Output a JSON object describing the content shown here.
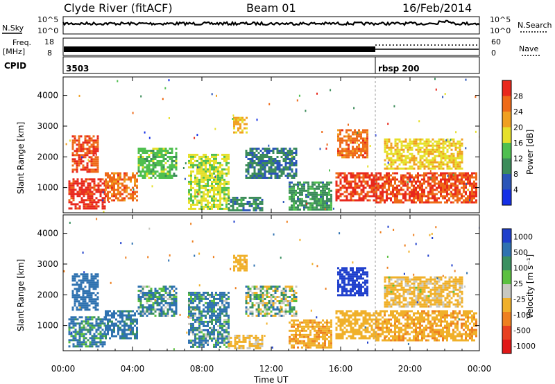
{
  "header": {
    "station": "Clyde River (fitACF)",
    "beam": "Beam 01",
    "date": "16/Feb/2014"
  },
  "noise_panel": {
    "left_label": "N.Sky",
    "right_label": "N.Search",
    "left_ticks": [
      "10^5",
      "10^0"
    ],
    "right_ticks": [
      "10^5",
      "10^0"
    ]
  },
  "freq_panel": {
    "left_label_1": "Freq.",
    "left_label_2": "[MHz]",
    "right_label": "Nave",
    "left_ticks": [
      "18",
      "8"
    ],
    "right_ticks": [
      "60",
      "0"
    ]
  },
  "cpid_panel": {
    "label": "CPID",
    "segments": [
      {
        "start_hour": 0,
        "label": "3503"
      },
      {
        "start_hour": 18,
        "label": "rbsp 200"
      }
    ]
  },
  "x_axis": {
    "label": "Time UT",
    "ticks": [
      "00:00",
      "04:00",
      "08:00",
      "12:00",
      "16:00",
      "20:00",
      "00:00"
    ],
    "range_hours": [
      0,
      24
    ]
  },
  "power_panel": {
    "ylabel": "Slant Range [km]",
    "yticks": [
      "1000",
      "2000",
      "3000",
      "4000"
    ],
    "colorbar_label": "Power [dB]",
    "colorbar_ticks": [
      "4",
      "8",
      "12",
      "16",
      "20",
      "24",
      "28"
    ],
    "colors": [
      "#1530e6",
      "#2b55b8",
      "#3c8c5a",
      "#4fbf4f",
      "#e6e02a",
      "#f0a020",
      "#ee6a18",
      "#e8281c"
    ]
  },
  "velocity_panel": {
    "ylabel": "Slant Range [km]",
    "yticks": [
      "1000",
      "2000",
      "3000",
      "4000"
    ],
    "colorbar_label": "Velocity [m s⁻¹]",
    "colorbar_ticks": [
      "1000",
      "500",
      "100",
      "25",
      "-25",
      "-100",
      "-500",
      "-1000"
    ],
    "colors": [
      "#1f3fcc",
      "#2f72b0",
      "#3a9060",
      "#5cc040",
      "#c8c8c0",
      "#f0b02a",
      "#ee8020",
      "#e84020",
      "#e01818"
    ]
  },
  "chart_data": [
    {
      "type": "heatmap",
      "title": "Power [dB]",
      "xlabel": "Time UT",
      "ylabel": "Slant Range [km]",
      "xlim": [
        0,
        24
      ],
      "ylim": [
        180,
        4600
      ],
      "value_range": [
        0,
        30
      ],
      "regions": [
        {
          "t0": 0.3,
          "t1": 2.4,
          "r0": 350,
          "r1": 1300,
          "value": 28
        },
        {
          "t0": 0.5,
          "t1": 2.0,
          "r0": 1500,
          "r1": 2700,
          "value": 26
        },
        {
          "t0": 2.4,
          "t1": 4.3,
          "r0": 600,
          "r1": 1500,
          "value": 24
        },
        {
          "t0": 4.3,
          "t1": 6.5,
          "r0": 1300,
          "r1": 2300,
          "value": 13
        },
        {
          "t0": 7.2,
          "t1": 9.5,
          "r0": 300,
          "r1": 2100,
          "value": 16
        },
        {
          "t0": 9.5,
          "t1": 11.5,
          "r0": 250,
          "r1": 700,
          "value": 9
        },
        {
          "t0": 9.8,
          "t1": 10.6,
          "r0": 2800,
          "r1": 3300,
          "value": 20
        },
        {
          "t0": 10.5,
          "t1": 13.5,
          "r0": 1300,
          "r1": 2300,
          "value": 8
        },
        {
          "t0": 13.0,
          "t1": 15.5,
          "r0": 300,
          "r1": 1200,
          "value": 10
        },
        {
          "t0": 15.7,
          "t1": 18.0,
          "r0": 600,
          "r1": 1500,
          "value": 27
        },
        {
          "t0": 15.8,
          "t1": 17.5,
          "r0": 2000,
          "r1": 2900,
          "value": 24
        },
        {
          "t0": 18.0,
          "t1": 23.8,
          "r0": 500,
          "r1": 1500,
          "value": 26
        },
        {
          "t0": 18.5,
          "t1": 23.0,
          "r0": 1600,
          "r1": 2600,
          "value": 18
        }
      ]
    },
    {
      "type": "heatmap",
      "title": "Velocity [m s⁻¹]",
      "xlabel": "Time UT",
      "ylabel": "Slant Range [km]",
      "xlim": [
        0,
        24
      ],
      "ylim": [
        180,
        4600
      ],
      "value_range": [
        -1000,
        1000
      ],
      "regions": [
        {
          "t0": 0.3,
          "t1": 2.4,
          "r0": 350,
          "r1": 1300,
          "value": 150
        },
        {
          "t0": 0.5,
          "t1": 2.0,
          "r0": 1500,
          "r1": 2700,
          "value": 300
        },
        {
          "t0": 2.4,
          "t1": 4.3,
          "r0": 600,
          "r1": 1500,
          "value": 200
        },
        {
          "t0": 4.3,
          "t1": 6.5,
          "r0": 1300,
          "r1": 2300,
          "value": 100
        },
        {
          "t0": 7.2,
          "t1": 9.5,
          "r0": 300,
          "r1": 2100,
          "value": 120
        },
        {
          "t0": 9.5,
          "t1": 11.5,
          "r0": 250,
          "r1": 700,
          "value": -200
        },
        {
          "t0": 9.8,
          "t1": 10.6,
          "r0": 2800,
          "r1": 3300,
          "value": -300
        },
        {
          "t0": 10.5,
          "t1": 13.5,
          "r0": 1300,
          "r1": 2300,
          "value": 0
        },
        {
          "t0": 13.0,
          "t1": 15.5,
          "r0": 300,
          "r1": 1200,
          "value": -400
        },
        {
          "t0": 15.7,
          "t1": 18.0,
          "r0": 600,
          "r1": 1500,
          "value": -300
        },
        {
          "t0": 15.8,
          "t1": 17.5,
          "r0": 2000,
          "r1": 2900,
          "value": 800
        },
        {
          "t0": 18.0,
          "t1": 23.8,
          "r0": 500,
          "r1": 1500,
          "value": -400
        },
        {
          "t0": 18.5,
          "t1": 23.0,
          "r0": 1600,
          "r1": 2600,
          "value": -200
        }
      ]
    }
  ]
}
